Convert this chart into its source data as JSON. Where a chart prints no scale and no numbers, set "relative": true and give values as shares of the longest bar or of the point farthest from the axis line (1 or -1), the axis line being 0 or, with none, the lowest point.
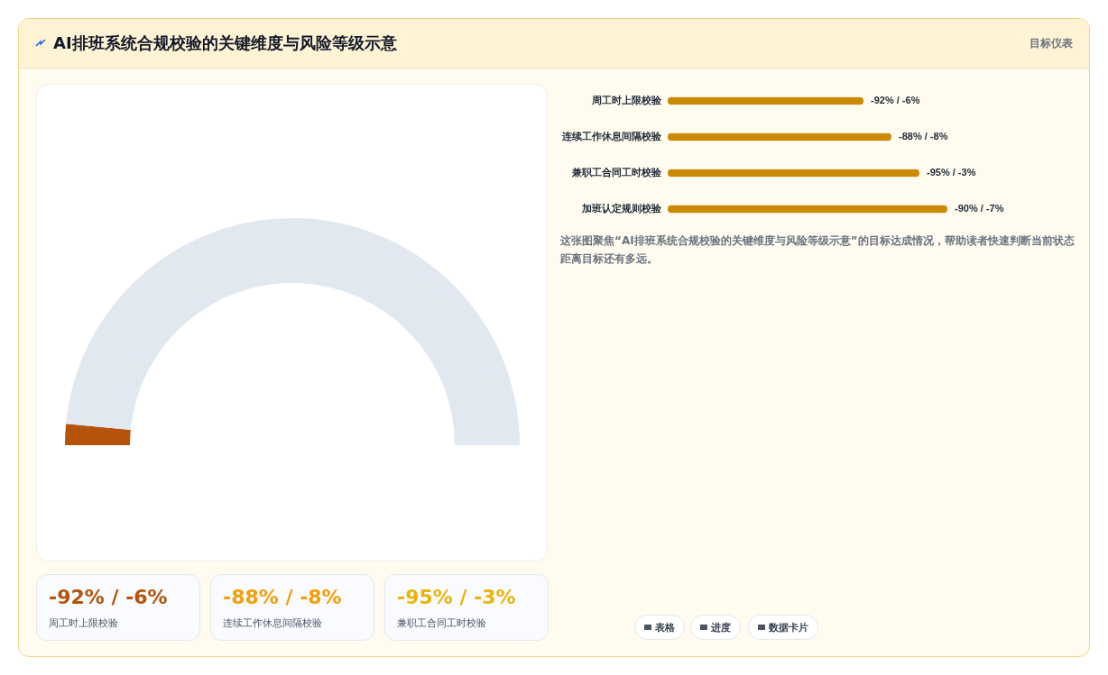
{
  "chart_data": [
    {
      "type": "other",
      "title": "AI排班系统合规校验的关键维度与风险等级示意",
      "subtitle": "目标仪表"
    },
    {
      "type": "donut",
      "categories": [
        null,
        null
      ],
      "values": [
        3,
        97
      ],
      "colors": [
        "#b45309",
        "#e2e8f0"
      ],
      "annotations": [
        "-92% / -6%",
        "周工时上限校验",
        "-88% / -8%",
        "连续工作休息间隔校验",
        "-95% / -3%",
        "兼职工合同工时校验"
      ]
    },
    {
      "type": "bar",
      "orientation": "horizontal",
      "relative": true,
      "categories": [
        "周工时上限校验",
        "连续工作休息间隔校验",
        "兼职工合同工时校验",
        "加班认定规则校验"
      ],
      "values": [
        0.7,
        0.8,
        0.9,
        1
      ],
      "color": "#ca8a04",
      "annotations": [
        "-92% / -6%",
        "-88% / -8%",
        "-95% / -3%",
        "-90% / -7%",
        "这张图聚焦“AI排班系统合规校验的关键维度与风险等级示意”的目标达成情况，帮助读者快速判断当前状态距离目标还有多远。",
        "表格",
        "进度",
        "数据卡片"
      ]
    }
  ]
}
